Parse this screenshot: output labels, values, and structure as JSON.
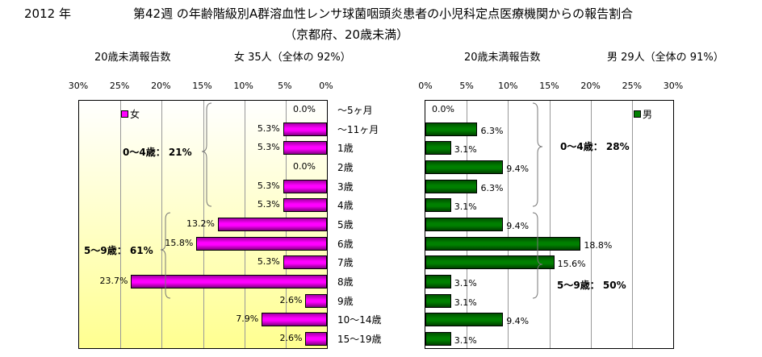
{
  "header": {
    "year": "2012 年",
    "title": "第42週 の年齢階級別A群溶血性レンサ球菌咽頭炎患者の小児科定点医療機関からの報告割合",
    "subtitle": "（京都府、20歳未満）",
    "left_count_label": "20歳未満報告数",
    "left_summary": "女  35人（全体の  92%）",
    "right_count_label": "20歳未満報告数",
    "right_summary": "男  29人（全体の  91%）"
  },
  "chart_data": [
    {
      "type": "bar",
      "orientation": "horizontal-reversed",
      "series_name": "女",
      "color": "#ff00ff",
      "xlim": [
        0,
        30
      ],
      "ticks": [
        "30%",
        "25%",
        "20%",
        "15%",
        "10%",
        "5%",
        "0%"
      ],
      "categories": [
        "～5ヶ月",
        "～11ヶ月",
        "1歳",
        "2歳",
        "3歳",
        "4歳",
        "5歳",
        "6歳",
        "7歳",
        "8歳",
        "9歳",
        "10～14歳",
        "15～19歳"
      ],
      "values": [
        0.0,
        5.3,
        5.3,
        0.0,
        5.3,
        5.3,
        13.2,
        15.8,
        5.3,
        23.7,
        2.6,
        7.9,
        2.6
      ],
      "labels": [
        "0.0%",
        "5.3%",
        "5.3%",
        "0.0%",
        "5.3%",
        "5.3%",
        "13.2%",
        "15.8%",
        "5.3%",
        "23.7%",
        "2.6%",
        "7.9%",
        "2.6%"
      ],
      "annotations": [
        "0～4歳： 21%",
        "5～9歳： 61%"
      ]
    },
    {
      "type": "bar",
      "orientation": "horizontal",
      "series_name": "男",
      "color": "#008000",
      "xlim": [
        0,
        30
      ],
      "ticks": [
        "0%",
        "5%",
        "10%",
        "15%",
        "20%",
        "25%",
        "30%"
      ],
      "values": [
        0.0,
        6.3,
        3.1,
        9.4,
        6.3,
        3.1,
        9.4,
        18.8,
        15.6,
        3.1,
        3.1,
        9.4,
        3.1
      ],
      "labels": [
        "0.0%",
        "6.3%",
        "3.1%",
        "9.4%",
        "6.3%",
        "3.1%",
        "9.4%",
        "18.8%",
        "15.6%",
        "3.1%",
        "3.1%",
        "9.4%",
        "3.1%"
      ],
      "annotations": [
        "0～4歳： 28%",
        "5～9歳： 50%"
      ]
    }
  ]
}
